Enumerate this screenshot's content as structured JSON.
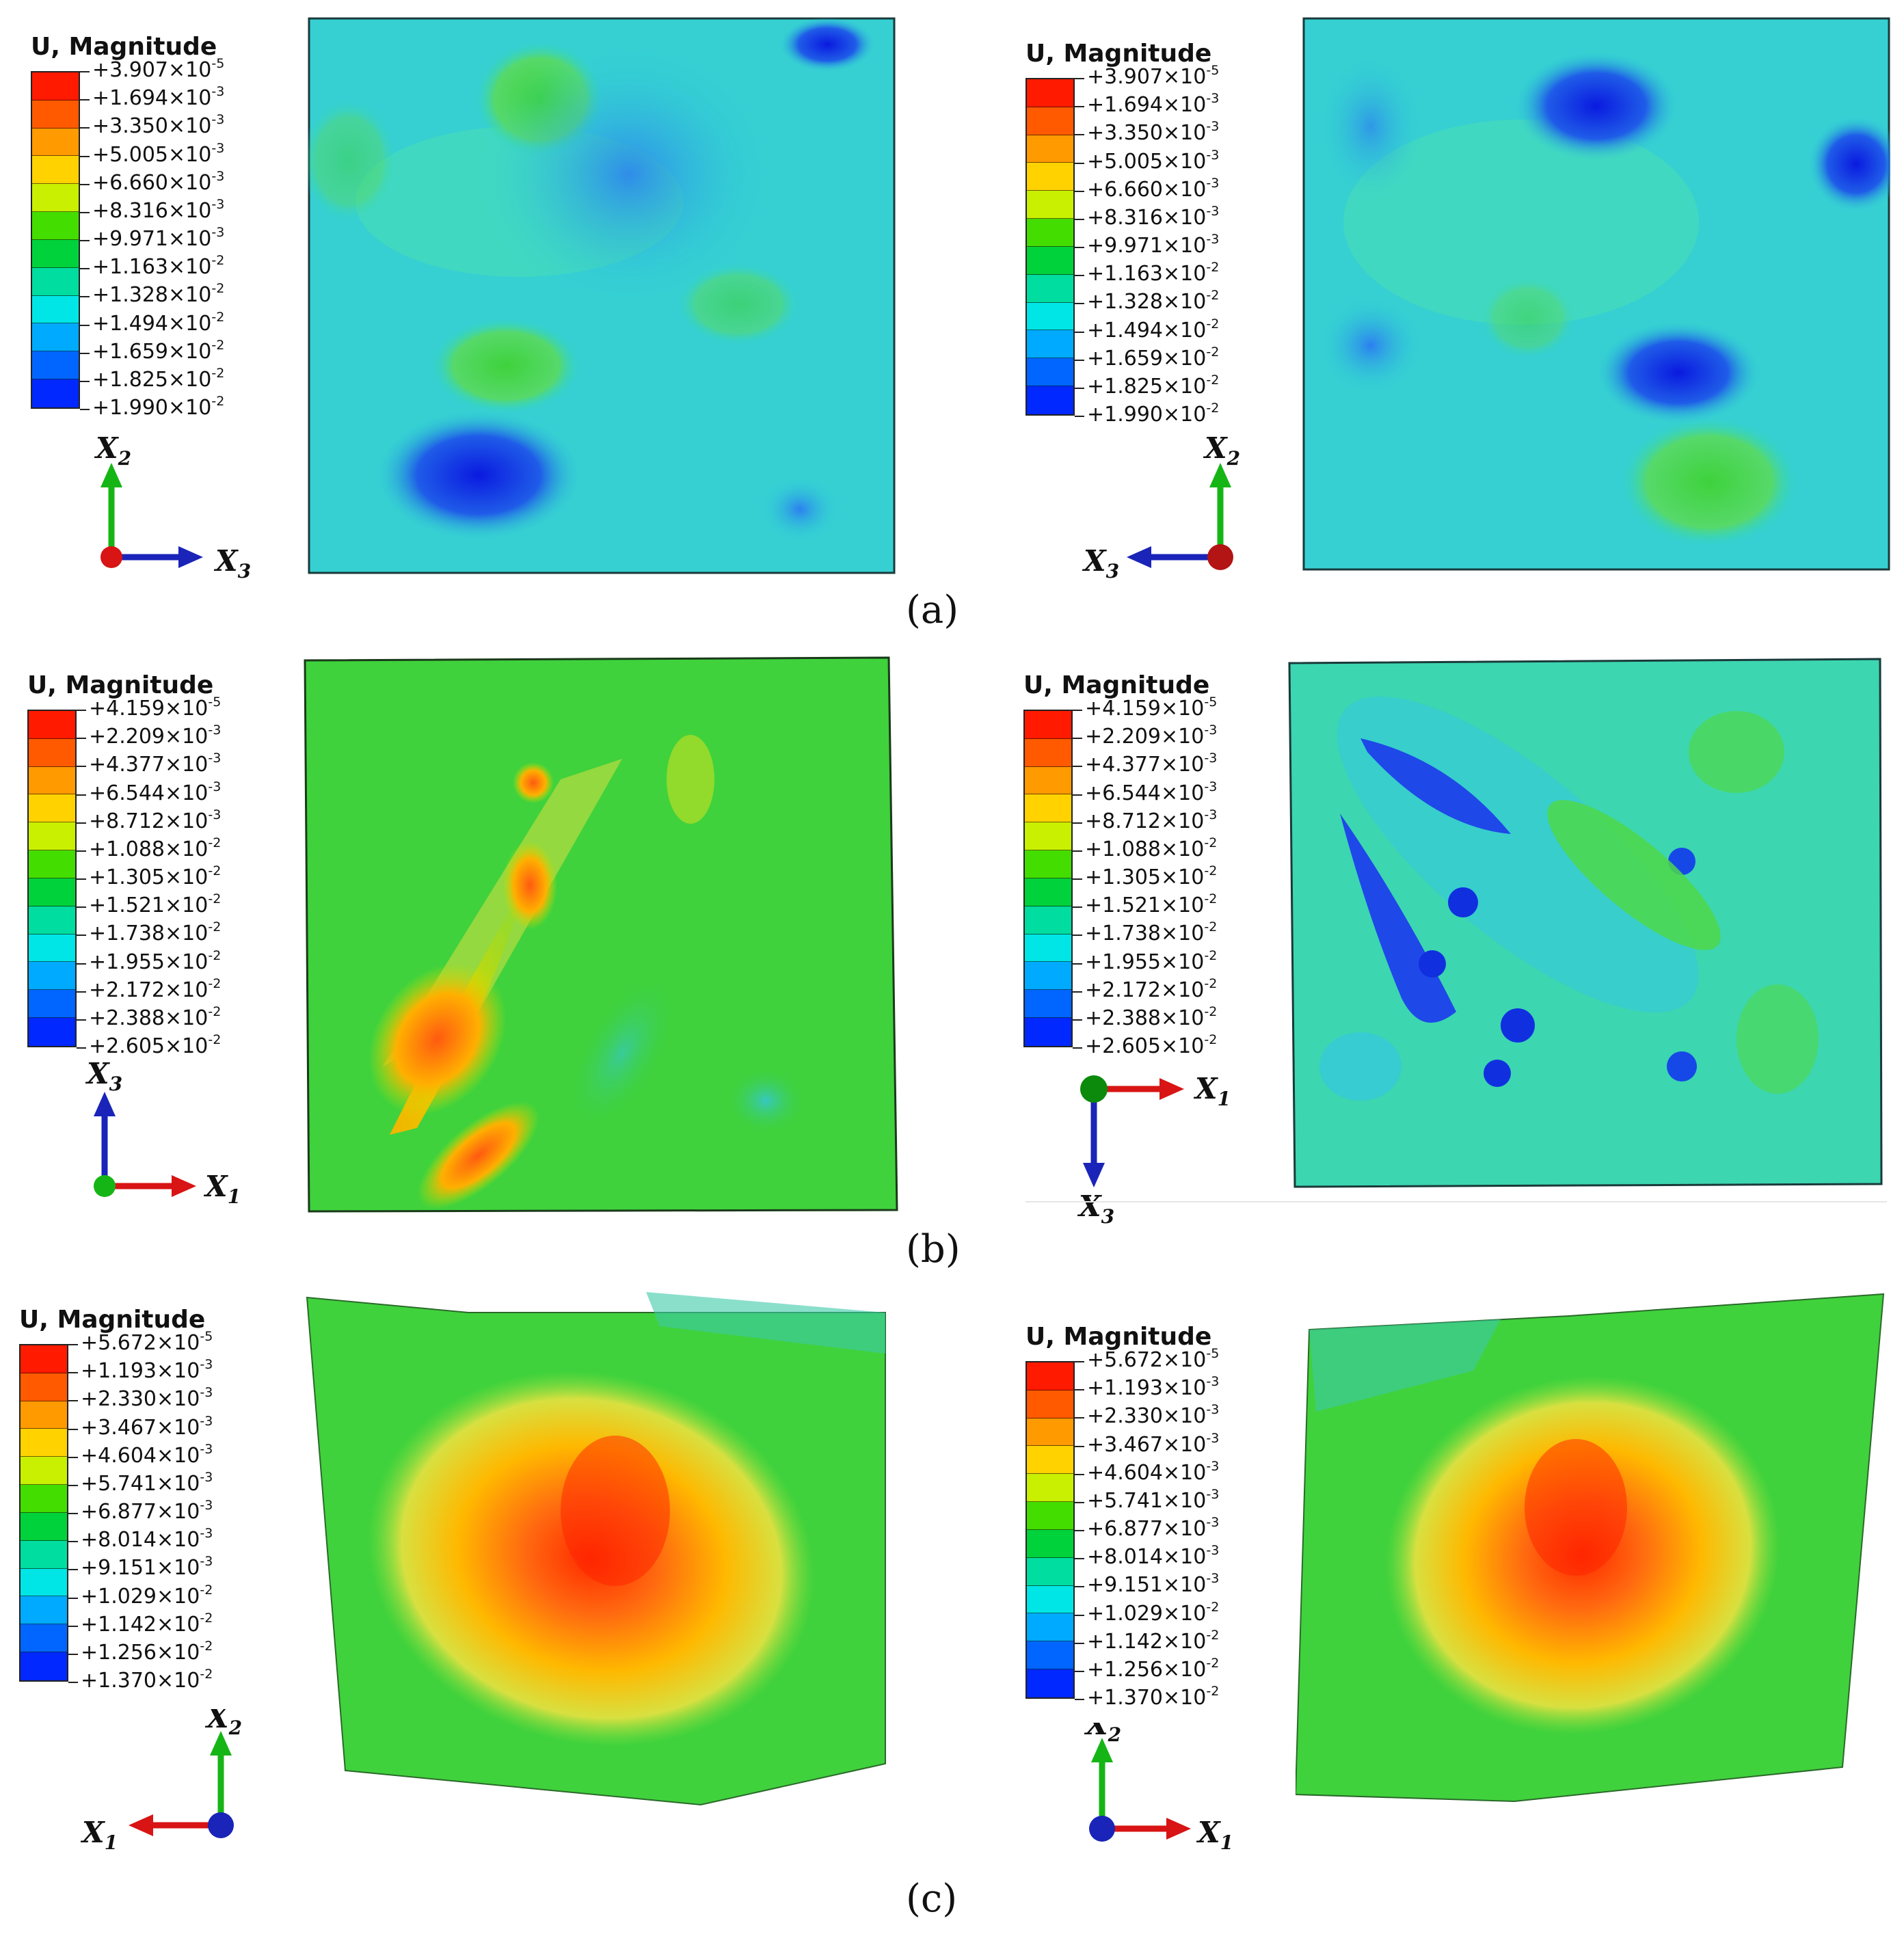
{
  "legend_title": "U, Magnitude",
  "colors": {
    "band_top_to_bottom": [
      "#ff1a00",
      "#ff5a00",
      "#ff9a00",
      "#ffd200",
      "#c8f000",
      "#44dd00",
      "#00d23c",
      "#00dda0",
      "#00e6e6",
      "#00aaff",
      "#0066ff",
      "#0028ff"
    ],
    "x_axis_red": "#d81414",
    "y_axis_green": "#16b516",
    "z_axis_blue": "#1a24b8"
  },
  "legend_scales": {
    "a": [
      {
        "base": "+3.907×10",
        "exp": "-5"
      },
      {
        "base": "+1.694×10",
        "exp": "-3"
      },
      {
        "base": "+3.350×10",
        "exp": "-3"
      },
      {
        "base": "+5.005×10",
        "exp": "-3"
      },
      {
        "base": "+6.660×10",
        "exp": "-3"
      },
      {
        "base": "+8.316×10",
        "exp": "-3"
      },
      {
        "base": "+9.971×10",
        "exp": "-3"
      },
      {
        "base": "+1.163×10",
        "exp": "-2"
      },
      {
        "base": "+1.328×10",
        "exp": "-2"
      },
      {
        "base": "+1.494×10",
        "exp": "-2"
      },
      {
        "base": "+1.659×10",
        "exp": "-2"
      },
      {
        "base": "+1.825×10",
        "exp": "-2"
      },
      {
        "base": "+1.990×10",
        "exp": "-2"
      }
    ],
    "b": [
      {
        "base": "+4.159×10",
        "exp": "-5"
      },
      {
        "base": "+2.209×10",
        "exp": "-3"
      },
      {
        "base": "+4.377×10",
        "exp": "-3"
      },
      {
        "base": "+6.544×10",
        "exp": "-3"
      },
      {
        "base": "+8.712×10",
        "exp": "-3"
      },
      {
        "base": "+1.088×10",
        "exp": "-2"
      },
      {
        "base": "+1.305×10",
        "exp": "-2"
      },
      {
        "base": "+1.521×10",
        "exp": "-2"
      },
      {
        "base": "+1.738×10",
        "exp": "-2"
      },
      {
        "base": "+1.955×10",
        "exp": "-2"
      },
      {
        "base": "+2.172×10",
        "exp": "-2"
      },
      {
        "base": "+2.388×10",
        "exp": "-2"
      },
      {
        "base": "+2.605×10",
        "exp": "-2"
      }
    ],
    "c": [
      {
        "base": "+5.672×10",
        "exp": "-5"
      },
      {
        "base": "+1.193×10",
        "exp": "-3"
      },
      {
        "base": "+2.330×10",
        "exp": "-3"
      },
      {
        "base": "+3.467×10",
        "exp": "-3"
      },
      {
        "base": "+4.604×10",
        "exp": "-3"
      },
      {
        "base": "+5.741×10",
        "exp": "-3"
      },
      {
        "base": "+6.877×10",
        "exp": "-3"
      },
      {
        "base": "+8.014×10",
        "exp": "-3"
      },
      {
        "base": "+9.151×10",
        "exp": "-3"
      },
      {
        "base": "+1.029×10",
        "exp": "-2"
      },
      {
        "base": "+1.142×10",
        "exp": "-2"
      },
      {
        "base": "+1.256×10",
        "exp": "-2"
      },
      {
        "base": "+1.370×10",
        "exp": "-2"
      }
    ]
  },
  "axis_labels": {
    "x1": {
      "base": "X",
      "sub": "1"
    },
    "x2": {
      "base": "X",
      "sub": "2"
    },
    "x3": {
      "base": "X",
      "sub": "3"
    }
  },
  "captions": {
    "a": "(a)",
    "b": "(b)",
    "c": "(c)"
  }
}
